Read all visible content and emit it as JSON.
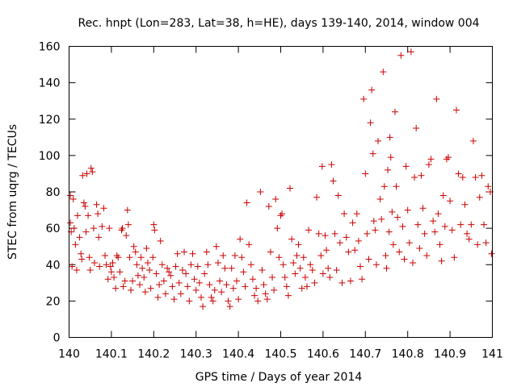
{
  "chart_data": {
    "type": "scatter",
    "title": "Rec. hnpt (Lon=283, Lat=38, h=HE), days 139-140, 2014, window 004",
    "xlabel": "GPS time / Days of year 2014",
    "ylabel": "STEC from uqrg / TECUs",
    "xlim": [
      140,
      141
    ],
    "ylim": [
      0,
      160
    ],
    "xticks": [
      "140",
      "140.1",
      "140.2",
      "140.3",
      "140.4",
      "140.5",
      "140.6",
      "140.7",
      "140.8",
      "140.9",
      "141"
    ],
    "yticks": [
      "0",
      "20",
      "40",
      "60",
      "80",
      "100",
      "120",
      "140",
      "160"
    ],
    "grid": false,
    "marker": "+",
    "color": "#cc0000",
    "series": [
      {
        "points": [
          [
            140.003,
            78
          ],
          [
            140.003,
            63
          ],
          [
            140.005,
            58
          ],
          [
            140.007,
            39
          ],
          [
            140.01,
            76
          ],
          [
            140.012,
            60
          ],
          [
            140.015,
            51
          ],
          [
            140.018,
            37
          ],
          [
            140.02,
            67
          ],
          [
            140.025,
            55
          ],
          [
            140.028,
            46
          ],
          [
            140.03,
            43
          ],
          [
            140.032,
            89
          ],
          [
            140.035,
            74
          ],
          [
            140.038,
            72
          ],
          [
            140.04,
            58
          ],
          [
            140.042,
            90
          ],
          [
            140.045,
            67
          ],
          [
            140.048,
            44
          ],
          [
            140.05,
            37
          ],
          [
            140.052,
            93
          ],
          [
            140.055,
            91
          ],
          [
            140.058,
            60
          ],
          [
            140.06,
            41
          ],
          [
            140.065,
            73
          ],
          [
            140.068,
            68
          ],
          [
            140.07,
            55
          ],
          [
            140.072,
            39
          ],
          [
            140.078,
            61
          ],
          [
            140.082,
            71
          ],
          [
            140.085,
            45
          ],
          [
            140.088,
            40
          ],
          [
            140.092,
            32
          ],
          [
            140.095,
            60
          ],
          [
            140.098,
            39
          ],
          [
            140.1,
            36
          ],
          [
            140.103,
            41
          ],
          [
            140.106,
            33
          ],
          [
            140.11,
            27
          ],
          [
            140.113,
            45
          ],
          [
            140.116,
            44
          ],
          [
            140.12,
            36
          ],
          [
            140.124,
            59
          ],
          [
            140.126,
            60
          ],
          [
            140.128,
            28
          ],
          [
            140.132,
            31
          ],
          [
            140.135,
            56
          ],
          [
            140.138,
            70
          ],
          [
            140.14,
            62
          ],
          [
            140.143,
            44
          ],
          [
            140.146,
            26
          ],
          [
            140.15,
            31
          ],
          [
            140.153,
            50
          ],
          [
            140.157,
            47
          ],
          [
            140.16,
            40
          ],
          [
            140.163,
            34
          ],
          [
            140.167,
            29
          ],
          [
            140.17,
            44
          ],
          [
            140.173,
            38
          ],
          [
            140.177,
            33
          ],
          [
            140.18,
            25
          ],
          [
            140.183,
            49
          ],
          [
            140.186,
            41
          ],
          [
            140.19,
            37
          ],
          [
            140.193,
            27
          ],
          [
            140.198,
            44
          ],
          [
            140.2,
            62
          ],
          [
            140.202,
            59
          ],
          [
            140.206,
            35
          ],
          [
            140.21,
            22
          ],
          [
            140.213,
            29
          ],
          [
            140.216,
            53
          ],
          [
            140.22,
            40
          ],
          [
            140.224,
            31
          ],
          [
            140.228,
            24
          ],
          [
            140.232,
            38
          ],
          [
            140.236,
            36
          ],
          [
            140.24,
            34
          ],
          [
            140.244,
            28
          ],
          [
            140.248,
            21
          ],
          [
            140.252,
            39
          ],
          [
            140.256,
            46
          ],
          [
            140.26,
            30
          ],
          [
            140.264,
            24
          ],
          [
            140.268,
            37
          ],
          [
            140.272,
            47
          ],
          [
            140.276,
            35
          ],
          [
            140.28,
            28
          ],
          [
            140.284,
            20
          ],
          [
            140.288,
            40
          ],
          [
            140.292,
            46
          ],
          [
            140.296,
            32
          ],
          [
            140.3,
            26
          ],
          [
            140.304,
            39
          ],
          [
            140.308,
            30
          ],
          [
            140.312,
            22
          ],
          [
            140.316,
            17
          ],
          [
            140.32,
            35
          ],
          [
            140.325,
            47
          ],
          [
            140.328,
            40
          ],
          [
            140.332,
            29
          ],
          [
            140.336,
            22
          ],
          [
            140.34,
            20
          ],
          [
            140.344,
            26
          ],
          [
            140.348,
            50
          ],
          [
            140.352,
            41
          ],
          [
            140.356,
            31
          ],
          [
            140.36,
            25
          ],
          [
            140.364,
            45
          ],
          [
            140.368,
            38
          ],
          [
            140.372,
            29
          ],
          [
            140.376,
            20
          ],
          [
            140.38,
            17
          ],
          [
            140.384,
            38
          ],
          [
            140.388,
            27
          ],
          [
            140.392,
            45
          ],
          [
            140.396,
            31
          ],
          [
            140.4,
            21
          ],
          [
            140.404,
            54
          ],
          [
            140.408,
            44
          ],
          [
            140.412,
            36
          ],
          [
            140.416,
            28
          ],
          [
            140.42,
            74
          ],
          [
            140.425,
            51
          ],
          [
            140.43,
            40
          ],
          [
            140.434,
            32
          ],
          [
            140.438,
            23
          ],
          [
            140.442,
            27
          ],
          [
            140.446,
            20
          ],
          [
            140.452,
            80
          ],
          [
            140.456,
            37
          ],
          [
            140.46,
            29
          ],
          [
            140.464,
            24
          ],
          [
            140.468,
            21
          ],
          [
            140.472,
            72
          ],
          [
            140.476,
            47
          ],
          [
            140.48,
            33
          ],
          [
            140.484,
            26
          ],
          [
            140.488,
            76
          ],
          [
            140.492,
            60
          ],
          [
            140.496,
            44
          ],
          [
            140.5,
            67
          ],
          [
            140.503,
            68
          ],
          [
            140.506,
            40
          ],
          [
            140.51,
            33
          ],
          [
            140.514,
            28
          ],
          [
            140.518,
            23
          ],
          [
            140.522,
            82
          ],
          [
            140.526,
            54
          ],
          [
            140.53,
            41
          ],
          [
            140.534,
            35
          ],
          [
            140.538,
            45
          ],
          [
            140.542,
            51
          ],
          [
            140.546,
            38
          ],
          [
            140.55,
            27
          ],
          [
            140.554,
            44
          ],
          [
            140.558,
            33
          ],
          [
            140.562,
            28
          ],
          [
            140.566,
            59
          ],
          [
            140.57,
            40
          ],
          [
            140.575,
            37
          ],
          [
            140.58,
            30
          ],
          [
            140.585,
            77
          ],
          [
            140.59,
            57
          ],
          [
            140.595,
            45
          ],
          [
            140.598,
            94
          ],
          [
            140.6,
            35
          ],
          [
            140.605,
            56
          ],
          [
            140.608,
            48
          ],
          [
            140.612,
            38
          ],
          [
            140.616,
            33
          ],
          [
            140.62,
            95
          ],
          [
            140.624,
            86
          ],
          [
            140.628,
            57
          ],
          [
            140.632,
            37
          ],
          [
            140.636,
            78
          ],
          [
            140.64,
            52
          ],
          [
            140.645,
            30
          ],
          [
            140.65,
            68
          ],
          [
            140.655,
            55
          ],
          [
            140.66,
            47
          ],
          [
            140.665,
            31
          ],
          [
            140.67,
            63
          ],
          [
            140.675,
            48
          ],
          [
            140.68,
            68
          ],
          [
            140.684,
            53
          ],
          [
            140.688,
            39
          ],
          [
            140.692,
            32
          ],
          [
            140.696,
            131
          ],
          [
            140.7,
            90
          ],
          [
            140.704,
            57
          ],
          [
            140.708,
            43
          ],
          [
            140.712,
            118
          ],
          [
            140.715,
            136
          ],
          [
            140.718,
            101
          ],
          [
            140.72,
            64
          ],
          [
            140.723,
            59
          ],
          [
            140.726,
            40
          ],
          [
            140.73,
            108
          ],
          [
            140.735,
            76
          ],
          [
            140.738,
            65
          ],
          [
            140.742,
            146
          ],
          [
            140.745,
            83
          ],
          [
            140.748,
            45
          ],
          [
            140.75,
            38
          ],
          [
            140.753,
            92
          ],
          [
            140.756,
            58
          ],
          [
            140.758,
            110
          ],
          [
            140.76,
            99
          ],
          [
            140.763,
            69
          ],
          [
            140.766,
            51
          ],
          [
            140.77,
            124
          ],
          [
            140.773,
            83
          ],
          [
            140.776,
            66
          ],
          [
            140.78,
            47
          ],
          [
            140.784,
            155
          ],
          [
            140.788,
            61
          ],
          [
            140.792,
            43
          ],
          [
            140.796,
            94
          ],
          [
            140.8,
            70
          ],
          [
            140.804,
            52
          ],
          [
            140.808,
            157
          ],
          [
            140.812,
            41
          ],
          [
            140.816,
            88
          ],
          [
            140.82,
            115
          ],
          [
            140.824,
            62
          ],
          [
            140.828,
            49
          ],
          [
            140.832,
            89
          ],
          [
            140.836,
            71
          ],
          [
            140.84,
            57
          ],
          [
            140.845,
            45
          ],
          [
            140.85,
            95
          ],
          [
            140.855,
            98
          ],
          [
            140.86,
            64
          ],
          [
            140.864,
            58
          ],
          [
            140.868,
            131
          ],
          [
            140.872,
            68
          ],
          [
            140.876,
            51
          ],
          [
            140.88,
            42
          ],
          [
            140.884,
            78
          ],
          [
            140.888,
            61
          ],
          [
            140.892,
            98
          ],
          [
            140.896,
            99
          ],
          [
            140.9,
            75
          ],
          [
            140.905,
            59
          ],
          [
            140.91,
            44
          ],
          [
            140.915,
            125
          ],
          [
            140.92,
            90
          ],
          [
            140.925,
            62
          ],
          [
            140.93,
            88
          ],
          [
            140.935,
            73
          ],
          [
            140.94,
            57
          ],
          [
            140.945,
            54
          ],
          [
            140.95,
            62
          ],
          [
            140.955,
            108
          ],
          [
            140.96,
            88
          ],
          [
            140.965,
            51
          ],
          [
            140.97,
            77
          ],
          [
            140.975,
            89
          ],
          [
            140.98,
            62
          ],
          [
            140.985,
            52
          ],
          [
            140.99,
            83
          ],
          [
            140.995,
            80
          ],
          [
            140.998,
            46
          ]
        ]
      }
    ]
  }
}
